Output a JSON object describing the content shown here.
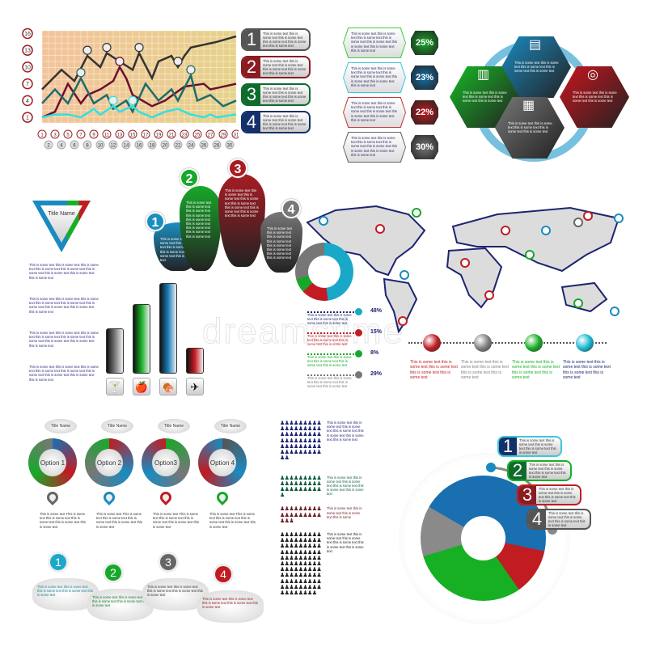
{
  "line_chart": {
    "chart_data": {
      "type": "line",
      "y_ticks": [
        1,
        4,
        7,
        10,
        13,
        16
      ],
      "x_ticks": [
        1,
        2,
        3,
        4,
        5,
        6,
        7,
        8,
        9,
        10,
        11,
        12,
        13,
        14,
        15,
        16,
        17,
        18,
        19,
        20,
        21,
        22,
        23,
        24,
        25,
        26,
        27,
        28,
        29,
        30,
        31
      ],
      "ylim": [
        0,
        16.5
      ],
      "xlim": [
        1,
        31
      ],
      "grid": true,
      "series": [
        {
          "color": "#333333",
          "points": [
            [
              1,
              6
            ],
            [
              4,
              9.5
            ],
            [
              6,
              7.5
            ],
            [
              8,
              12
            ],
            [
              10,
              10
            ],
            [
              11,
              12.5
            ],
            [
              13,
              11
            ],
            [
              15,
              9.5
            ],
            [
              16,
              12.5
            ],
            [
              18,
              8
            ],
            [
              19,
              11
            ],
            [
              21,
              12
            ],
            [
              22,
              10
            ],
            [
              23,
              12
            ],
            [
              24,
              13.5
            ],
            [
              28,
              14.5
            ],
            [
              31,
              15.5
            ]
          ],
          "markers": [
            8,
            11,
            16,
            22
          ]
        },
        {
          "color": "#6b1030",
          "points": [
            [
              1,
              1
            ],
            [
              3,
              2
            ],
            [
              5,
              7
            ],
            [
              7,
              3.5
            ],
            [
              8,
              5
            ],
            [
              10,
              6
            ],
            [
              12,
              7.5
            ],
            [
              13,
              10
            ],
            [
              14,
              8
            ],
            [
              15,
              5
            ],
            [
              18,
              3
            ],
            [
              20,
              4
            ],
            [
              23,
              6.5
            ],
            [
              26,
              7
            ],
            [
              27,
              6
            ],
            [
              31,
              7
            ]
          ],
          "markers": [
            13
          ]
        },
        {
          "color": "#1f6b6b",
          "points": [
            [
              1,
              3.5
            ],
            [
              3,
              6
            ],
            [
              5,
              3.5
            ],
            [
              7,
              8
            ],
            [
              9,
              3.5
            ],
            [
              11,
              5
            ],
            [
              12,
              2.5
            ],
            [
              14,
              4
            ],
            [
              15,
              2
            ],
            [
              17,
              7
            ],
            [
              19,
              4
            ],
            [
              21,
              6
            ],
            [
              22,
              4
            ],
            [
              24,
              8.5
            ],
            [
              25,
              4
            ],
            [
              27,
              5
            ],
            [
              29,
              3
            ],
            [
              31,
              4
            ]
          ],
          "markers": [
            7,
            24
          ]
        },
        {
          "color": "#33e0e0",
          "points": [
            [
              1,
              1
            ],
            [
              3,
              1.5
            ],
            [
              5,
              1.5
            ],
            [
              7,
              1
            ],
            [
              9,
              2.5
            ],
            [
              10,
              1.5
            ],
            [
              12,
              3
            ],
            [
              13,
              2
            ],
            [
              15,
              3
            ],
            [
              16,
              2
            ],
            [
              18,
              1
            ],
            [
              20,
              2
            ],
            [
              22,
              2.5
            ],
            [
              24,
              1.5
            ],
            [
              26,
              1
            ],
            [
              27,
              1.5
            ],
            [
              28,
              1
            ],
            [
              31,
              1.5
            ]
          ],
          "markers": [
            12,
            15
          ]
        }
      ]
    },
    "callouts": [
      {
        "num": "1",
        "text": "This is some text this is some text this is some text this is some text this is some text this is some text",
        "color": "#555555"
      },
      {
        "num": "2",
        "text": "This is some text this is some text this is some text this is some text this is some text this is some text",
        "color": "#8a1c22"
      },
      {
        "num": "3",
        "text": "This is some text this is some text this is some text this is some text this is some text this is some text",
        "color": "#0e6b2c"
      },
      {
        "num": "4",
        "text": "This is some text this is some text this is some text this is some text this is some text this is some text",
        "color": "#14306a"
      }
    ]
  },
  "hex_list": [
    {
      "pct": "25%",
      "color": "#18a828",
      "border": "#3ccf3c",
      "text": "This is some text this is some text this is some text this is some text this is some text this is some text this is some text this is some text"
    },
    {
      "pct": "23%",
      "color": "#1570a8",
      "border": "#3cc8e0",
      "text": "This is some text this is some text this is some text this is some text this is some text this is some text this is some text this is some text"
    },
    {
      "pct": "22%",
      "color": "#c01c22",
      "border": "#c03a40",
      "text": "This is some text this is some text this is some text this is some text this is some text this is some text this is some text this is some text"
    },
    {
      "pct": "30%",
      "color": "#777777",
      "border": "#666666",
      "text": "This is some text this is some text this is some text this is some text this is some text this is some text this is some text this is some text"
    }
  ],
  "hex_cluster": [
    {
      "icon": "tablet-icon",
      "glyph": "▤",
      "color": "#1a8ac0",
      "text": "This is some text this is some text this is some text this is some text this is some text"
    },
    {
      "icon": "chart-icon",
      "glyph": "▥",
      "color": "#17b825",
      "text": "This is some text this is some text this is some text this is some text this is some text"
    },
    {
      "icon": "target-icon",
      "glyph": "◎",
      "color": "#c8161e",
      "text": "This is some text this is some text this is some text this is some text this is some text"
    },
    {
      "icon": "documents-icon",
      "glyph": "▦",
      "color": "#777777",
      "text": "This is some text this is some text this is some text this is some text this is some text"
    }
  ],
  "triangle": {
    "title": "Title Name"
  },
  "paragraphs": [
    "This is some text this is some text this is some text this is some text this is some text this is some text this is some text this is some text this is some text",
    "This is some text this is some text this is some text this is some text this is some text this is some text this is some text this is some text this is some text",
    "This is some text this is some text this is some text this is some text this is some text this is some text this is some text this is some text this is some text",
    "This is some text this is some text this is some text this is some text this is some text this is some text this is some text this is some text this is some text"
  ],
  "petals": [
    {
      "num": "1",
      "color": "#1b8fc0",
      "text": "This is some text this is some text this is some text this is some text this is some text this is some text this is some text"
    },
    {
      "num": "2",
      "color": "#17a82a",
      "text": "This is some text this is some text this is some text this is some text this is some text this is some text this is some text this is some text this is some text"
    },
    {
      "num": "3",
      "color": "#a81c24",
      "text": "This is some text this is some text this is some text this is some text this is some text this is some text this is some text this is some text this is some text"
    },
    {
      "num": "4",
      "color": "#777777",
      "text": "This is some text this is some text this is some text this is some text this is some text this is some text this is some text this is some text"
    }
  ],
  "bar_chart": {
    "chart_data": {
      "type": "bar",
      "categories": [
        "cocktail-icon",
        "fruit-icon",
        "meat-icon",
        "airplane-icon"
      ],
      "values": [
        0.5,
        0.77,
        1.0,
        0.29
      ],
      "colors": [
        "#777777",
        "#17b025",
        "#1a7fb8",
        "#c81c22"
      ]
    },
    "icons": [
      "🍸",
      "🍎",
      "🍖",
      "✈"
    ]
  },
  "donut_legend": {
    "chart_data": {
      "type": "pie",
      "values": [
        48,
        15,
        8,
        29
      ],
      "labels": [
        "48%",
        "15%",
        "8%",
        "29%"
      ],
      "colors": [
        "#1aa8c8",
        "#c01c22",
        "#17a82a",
        "#777777"
      ]
    },
    "texts": [
      "This is some text this is some text this is some text this is some text this is some text",
      "This is some text this is some text this is some text this is some text this is some text",
      "This is some text this is some text this is some text this is some text this is some text",
      "This is some text this is some text this is some text this is some text this is some text"
    ]
  },
  "timeline": [
    {
      "color": "#c01c22",
      "text": "This is some text this is some text this is some text this is some text this is some text"
    },
    {
      "color": "#808080",
      "text": "This is some text this is some text this is some text this is some text this is some text"
    },
    {
      "color": "#17b025",
      "text": "This is some text this is some text this is some text this is some text this is some text"
    },
    {
      "color": "#1ab8d0",
      "text": "This is some text this is some text this is some text this is some text this is some text"
    }
  ],
  "options": [
    {
      "title": "Title Name",
      "label": "Option 1",
      "pin": "#666666",
      "text": "This is some text This is some text this is some text this is some text this is some text this is some text"
    },
    {
      "title": "Title Name",
      "label": "Option 2",
      "pin": "#1a8ac0",
      "text": "This is some text This is some text this is some text this is some text this is some text this is some text"
    },
    {
      "title": "Title Name",
      "label": "Option3",
      "pin": "#c01c22",
      "text": "This is some text This is some text this is some text this is some text this is some text this is some text"
    },
    {
      "title": "Title Name",
      "label": "Option 4",
      "pin": "#17a82a",
      "text": "This is some text This is some text this is some text this is some text this is some text this is some text"
    }
  ],
  "clouds": [
    {
      "num": "1",
      "color": "#1aa8c8",
      "textcolor": "#1a7f9a",
      "text": "This is some text this is some text this is some text this is some text this is some text"
    },
    {
      "num": "2",
      "color": "#17a82a",
      "textcolor": "#127a2a",
      "text": "This is some text this is some text this is some text this is some text this is some text"
    },
    {
      "num": "3",
      "color": "#666666",
      "textcolor": "#333333",
      "text": "This is some text this is some text this is some text this is some text this is some text"
    },
    {
      "num": "4",
      "color": "#c01c22",
      "textcolor": "#8a1c22",
      "text": "This is some text this is some text this is some text this is some text this is some text"
    }
  ],
  "pictograms": [
    {
      "color": "#1e2470",
      "count": 56,
      "text": "This is some text this is some text this is some text this is some text this is some text this is some text this is some text"
    },
    {
      "color": "#0e5a3a",
      "count": 28,
      "text": "This is some text this is some text this is some text this is some text this is some text this is some text"
    },
    {
      "color": "#6b2228",
      "count": 21,
      "text": "This is some text this is some text this is some text this is some"
    },
    {
      "color": "#222222",
      "count": 98,
      "text": "This is some text this is some text this is some text this is some text this is some text this is some text"
    }
  ],
  "big_donut": {
    "chart_data": {
      "type": "pie",
      "values": [
        45,
        12,
        30,
        13
      ],
      "colors": [
        "#1a6fb0",
        "#c01c22",
        "#17b025",
        "#8a8a8a"
      ]
    },
    "callouts": [
      {
        "num": "1",
        "color": "#14306a",
        "border": "#3cc8e0",
        "text": "This is some text this is some text this is some text this is some text this is some text"
      },
      {
        "num": "2",
        "color": "#0e6b2c",
        "border": "#17b025",
        "text": "This is some text this is some text this is some text this is some text this is some text"
      },
      {
        "num": "3",
        "color": "#8a1c22",
        "border": "#c01c22",
        "text": "This is some text this is some text this is some text this is some text this is some text"
      },
      {
        "num": "4",
        "color": "#555555",
        "border": "#555555",
        "text": "This is some text this is some text this is some text this is some text this is some text"
      }
    ]
  },
  "watermark": "dreamstime"
}
